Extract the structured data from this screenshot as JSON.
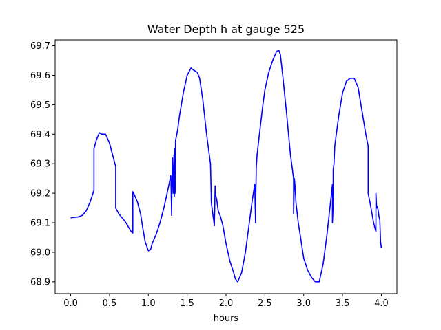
{
  "chart_data": {
    "type": "line",
    "title": "Water Depth h at gauge 525",
    "xlabel": "hours",
    "ylabel": "",
    "xlim": [
      -0.2,
      4.2
    ],
    "ylim": [
      68.86,
      69.72
    ],
    "xticks": [
      0.0,
      0.5,
      1.0,
      1.5,
      2.0,
      2.5,
      3.0,
      3.5,
      4.0
    ],
    "xtick_labels": [
      "0.0",
      "0.5",
      "1.0",
      "1.5",
      "2.0",
      "2.5",
      "3.0",
      "3.5",
      "4.0"
    ],
    "yticks": [
      68.9,
      69.0,
      69.1,
      69.2,
      69.3,
      69.4,
      69.5,
      69.6,
      69.7
    ],
    "ytick_labels": [
      "68.9",
      "69.0",
      "69.1",
      "69.2",
      "69.3",
      "69.4",
      "69.5",
      "69.6",
      "69.7"
    ],
    "grid": false,
    "legend": "none",
    "series": [
      {
        "color": "#0000ff",
        "x": [
          0.0,
          0.1,
          0.15,
          0.2,
          0.25,
          0.3,
          0.3,
          0.33,
          0.37,
          0.4,
          0.45,
          0.5,
          0.55,
          0.58,
          0.58,
          0.62,
          0.7,
          0.78,
          0.8,
          0.8,
          0.82,
          0.86,
          0.9,
          0.93,
          0.96,
          1.0,
          1.03,
          1.05,
          1.1,
          1.15,
          1.2,
          1.25,
          1.29,
          1.3,
          1.3,
          1.31,
          1.32,
          1.33,
          1.335,
          1.34,
          1.345,
          1.35,
          1.36,
          1.38,
          1.4,
          1.45,
          1.5,
          1.55,
          1.57,
          1.6,
          1.63,
          1.66,
          1.7,
          1.75,
          1.8,
          1.81,
          1.81,
          1.85,
          1.86,
          1.86,
          1.88,
          1.9,
          1.93,
          1.96,
          2.0,
          2.05,
          2.1,
          2.12,
          2.15,
          2.2,
          2.25,
          2.3,
          2.34,
          2.37,
          2.38,
          2.38,
          2.39,
          2.4,
          2.43,
          2.47,
          2.5,
          2.55,
          2.6,
          2.65,
          2.68,
          2.7,
          2.73,
          2.78,
          2.83,
          2.87,
          2.87,
          2.88,
          2.89,
          2.9,
          2.93,
          2.96,
          3.0,
          3.05,
          3.1,
          3.15,
          3.2,
          3.25,
          3.3,
          3.35,
          3.37,
          3.37,
          3.38,
          3.38,
          3.39,
          3.4,
          3.45,
          3.5,
          3.55,
          3.6,
          3.65,
          3.7,
          3.75,
          3.8,
          3.83,
          3.83,
          3.86,
          3.9,
          3.93,
          3.93,
          3.94,
          3.95,
          3.96,
          3.97,
          3.98,
          3.99,
          4.0
        ],
        "y": [
          69.117,
          69.12,
          69.125,
          69.14,
          69.17,
          69.21,
          69.35,
          69.38,
          69.405,
          69.4,
          69.4,
          69.37,
          69.32,
          69.29,
          69.15,
          69.13,
          69.105,
          69.07,
          69.065,
          69.205,
          69.195,
          69.17,
          69.13,
          69.08,
          69.035,
          69.005,
          69.01,
          69.03,
          69.06,
          69.1,
          69.15,
          69.21,
          69.26,
          69.125,
          69.15,
          69.32,
          69.2,
          69.33,
          69.19,
          69.35,
          69.2,
          69.38,
          69.39,
          69.42,
          69.46,
          69.54,
          69.6,
          69.625,
          69.62,
          69.615,
          69.61,
          69.59,
          69.52,
          69.4,
          69.3,
          69.19,
          69.17,
          69.09,
          69.225,
          69.2,
          69.18,
          69.14,
          69.12,
          69.09,
          69.03,
          68.97,
          68.93,
          68.91,
          68.9,
          68.93,
          69.0,
          69.1,
          69.18,
          69.23,
          69.1,
          69.14,
          69.29,
          69.33,
          69.4,
          69.49,
          69.55,
          69.61,
          69.65,
          69.68,
          69.685,
          69.67,
          69.6,
          69.47,
          69.33,
          69.25,
          69.13,
          69.25,
          69.22,
          69.17,
          69.1,
          69.05,
          68.98,
          68.94,
          68.915,
          68.9,
          68.9,
          68.96,
          69.06,
          69.18,
          69.23,
          69.1,
          69.16,
          69.28,
          69.3,
          69.36,
          69.46,
          69.54,
          69.58,
          69.59,
          69.59,
          69.56,
          69.48,
          69.4,
          69.36,
          69.2,
          69.16,
          69.1,
          69.07,
          69.2,
          69.15,
          69.155,
          69.14,
          69.12,
          69.11,
          69.035,
          69.015
        ]
      }
    ]
  }
}
